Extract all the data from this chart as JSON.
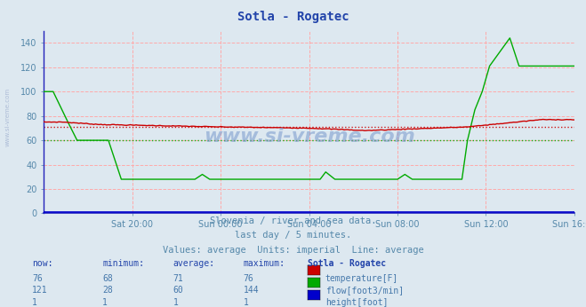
{
  "title": "Sotla - Rogatec",
  "bg_color": "#dde8f0",
  "plot_bg_color": "#dde8f0",
  "text_color": "#5588aa",
  "xlim": [
    0,
    288
  ],
  "ylim": [
    0,
    150
  ],
  "yticks": [
    0,
    20,
    40,
    60,
    80,
    100,
    120,
    140
  ],
  "xtick_labels": [
    "Sat 20:00",
    "Sun 00:00",
    "Sun 04:00",
    "Sun 08:00",
    "Sun 12:00",
    "Sun 16:00"
  ],
  "xtick_positions": [
    48,
    96,
    144,
    192,
    240,
    288
  ],
  "avg_temp": 71,
  "avg_flow_val": 60,
  "temp_color": "#cc0000",
  "flow_color": "#00aa00",
  "height_color": "#0000cc",
  "watermark": "www.si-vreme.com",
  "sidebar": "www.si-vreme.com",
  "subtitle1": "Slovenia / river and sea data.",
  "subtitle2": "last day / 5 minutes.",
  "subtitle3": "Values: average  Units: imperial  Line: average",
  "now_temp": 76,
  "min_temp": 68,
  "avg_temp_val": 71,
  "max_temp": 76,
  "now_flow": 121,
  "min_flow": 28,
  "avg_flow_val2": 60,
  "max_flow": 144,
  "now_height": 1,
  "min_height": 1,
  "avg_height_val": 1,
  "max_height": 1,
  "grid_color": "#ffaaaa",
  "avg_line_dash": [
    3,
    3
  ]
}
